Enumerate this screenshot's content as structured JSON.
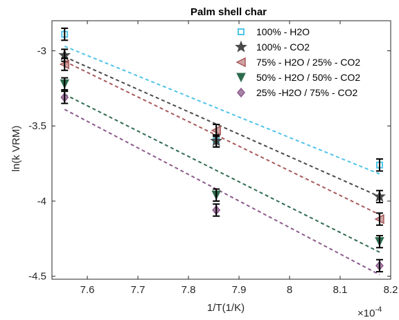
{
  "chart_data": {
    "type": "scatter",
    "title": "Palm shell char",
    "xlabel": "1/T(1/K)",
    "ylabel": "ln(k VRM)",
    "x_multiplier_label": "×10",
    "x_multiplier_exponent": "-4",
    "xlim": [
      7.53,
      8.2
    ],
    "ylim": [
      -4.52,
      -2.8
    ],
    "xticks": [
      7.6,
      7.7,
      7.8,
      7.9,
      8,
      8.1,
      8.2
    ],
    "xtick_labels": [
      "7.6",
      "7.7",
      "7.8",
      "7.9",
      "8",
      "8.1",
      "8.2"
    ],
    "yticks": [
      -3,
      -3.5,
      -4,
      -4.5
    ],
    "ytick_labels": [
      "-3",
      "-3.5",
      "-4",
      "-4.5"
    ],
    "grid": false,
    "legend_position": "top-right",
    "x": [
      7.555,
      7.855,
      8.178
    ],
    "series": [
      {
        "name": "100% - H2O",
        "marker": "square",
        "color": "#4FC3E8",
        "values": [
          -2.89,
          -3.6,
          -3.76
        ],
        "errors": [
          0.04,
          0.04,
          0.04
        ],
        "fit": [
          -2.97,
          -3.82
        ]
      },
      {
        "name": "100% - CO2",
        "marker": "star",
        "color": "#4a4a4a",
        "values": [
          -3.03,
          -3.6,
          -3.97
        ],
        "errors": [
          0.04,
          0.04,
          0.04
        ],
        "fit": [
          -3.04,
          -3.97
        ]
      },
      {
        "name": "75% - H2O / 25% - CO2",
        "marker": "triangle-left",
        "color": "#A8595A",
        "values": [
          -3.09,
          -3.53,
          -4.12
        ],
        "errors": [
          0.04,
          0.04,
          0.04
        ],
        "fit": [
          -3.07,
          -4.09
        ]
      },
      {
        "name": "50% - H2O / 50% - CO2",
        "marker": "triangle-down",
        "color": "#2E6B4E",
        "values": [
          -3.22,
          -3.96,
          -4.27
        ],
        "errors": [
          0.04,
          0.04,
          0.04
        ],
        "fit": [
          -3.29,
          -4.34
        ]
      },
      {
        "name": "25% -H2O / 75% - CO2",
        "marker": "diamond",
        "color": "#8B5A8B",
        "values": [
          -3.31,
          -4.06,
          -4.43
        ],
        "errors": [
          0.04,
          0.04,
          0.04
        ],
        "fit": [
          -3.39,
          -4.49
        ]
      }
    ]
  }
}
